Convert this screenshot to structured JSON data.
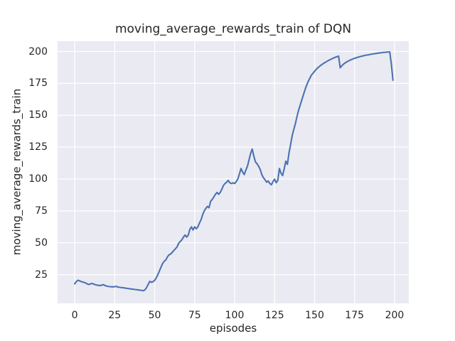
{
  "figure": {
    "background": "#ffffff"
  },
  "chart_data": {
    "type": "line",
    "title": "moving_average_rewards_train of DQN",
    "xlabel": "episodes",
    "ylabel": "moving_average_rewards_train",
    "xlim": [
      -10.7,
      208.9
    ],
    "ylim": [
      2.5,
      208.1
    ],
    "xticks": [
      0,
      25,
      50,
      75,
      100,
      125,
      150,
      175,
      200
    ],
    "yticks": [
      25,
      50,
      75,
      100,
      125,
      150,
      175,
      200
    ],
    "grid": true,
    "legend": false,
    "plot_bg_color": "#eaeaf2",
    "grid_color": "#ffffff",
    "line_color": "#4c72b0",
    "text_color": "#262626",
    "series": [
      {
        "name": "moving_average_rewards_train",
        "x_start": 0,
        "x_step": 1,
        "y": [
          17.8,
          19.5,
          20.6,
          20.2,
          19.6,
          19.2,
          18.9,
          18.4,
          17.6,
          17.3,
          17.9,
          18.1,
          17.5,
          17.1,
          16.8,
          16.6,
          16.4,
          16.9,
          17.1,
          16.5,
          16.0,
          15.8,
          15.6,
          15.5,
          15.4,
          15.6,
          15.8,
          15.3,
          15.1,
          14.9,
          14.8,
          14.6,
          14.4,
          14.2,
          14.0,
          13.8,
          13.7,
          13.5,
          13.3,
          13.2,
          13.0,
          12.8,
          12.6,
          12.4,
          13.2,
          15.0,
          17.5,
          19.8,
          19.0,
          19.5,
          20.5,
          22.6,
          25.0,
          28.0,
          31.0,
          33.8,
          35.5,
          36.6,
          39.0,
          40.6,
          41.2,
          42.5,
          44.0,
          45.3,
          46.8,
          49.6,
          51.0,
          52.3,
          54.5,
          56.1,
          54.5,
          56.0,
          60.5,
          62.5,
          60.0,
          62.5,
          61.0,
          62.5,
          65.5,
          68.0,
          72.0,
          75.0,
          77.0,
          78.5,
          77.5,
          82.5,
          84.0,
          86.0,
          88.0,
          89.5,
          88.0,
          89.5,
          92.0,
          95.0,
          96.5,
          97.5,
          99.0,
          97.0,
          96.5,
          97.0,
          96.5,
          98.0,
          100.0,
          104.0,
          108.3,
          105.5,
          103.5,
          107.0,
          110.0,
          115.0,
          120.0,
          123.5,
          118.0,
          113.5,
          112.0,
          110.0,
          107.5,
          103.5,
          101.0,
          99.5,
          97.5,
          98.5,
          96.5,
          95.5,
          98.0,
          99.9,
          97.1,
          99.0,
          108.3,
          104.5,
          102.7,
          108.0,
          114.0,
          111.5,
          120.5,
          127.0,
          134.0,
          139.0,
          143.5,
          149.0,
          154.0,
          158.0,
          162.0,
          166.0,
          170.0,
          173.5,
          176.5,
          179.0,
          181.5,
          183.0,
          184.5,
          186.0,
          187.2,
          188.3,
          189.3,
          190.2,
          191.0,
          191.8,
          192.5,
          193.2,
          193.8,
          194.4,
          195.0,
          195.5,
          196.0,
          196.4,
          187.3,
          188.8,
          190.0,
          191.0,
          191.8,
          192.5,
          193.1,
          193.7,
          194.2,
          194.7,
          195.1,
          195.5,
          195.9,
          196.2,
          196.5,
          196.8,
          197.1,
          197.3,
          197.5,
          197.8,
          198.0,
          198.2,
          198.4,
          198.6,
          198.8,
          199.0,
          199.1,
          199.3,
          199.4,
          199.5,
          199.6,
          199.7,
          190.0,
          177.5
        ]
      }
    ]
  }
}
